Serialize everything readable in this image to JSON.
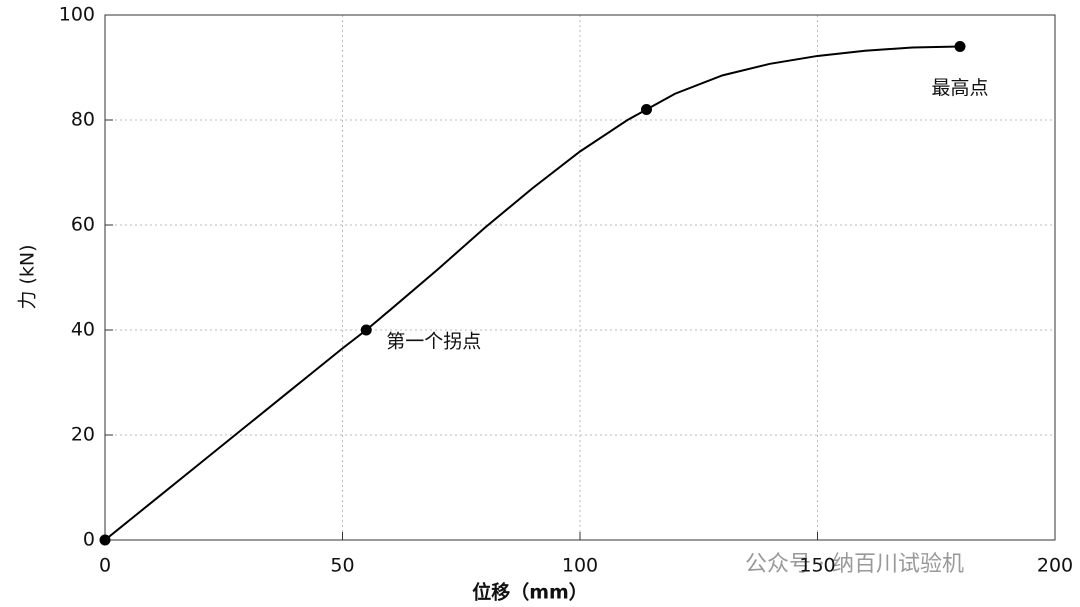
{
  "chart_data": {
    "type": "line",
    "x_label": "位移（mm）",
    "y_label": "力 (kN)",
    "x": [
      0,
      10,
      20,
      30,
      40,
      50,
      55,
      60,
      70,
      80,
      90,
      100,
      110,
      114,
      120,
      130,
      140,
      150,
      160,
      170,
      180
    ],
    "series": [
      {
        "color": "#000000",
        "values": [
          0,
          7.3,
          14.6,
          21.9,
          29.2,
          36.5,
          40,
          43.8,
          51.5,
          59.5,
          67,
          74,
          80,
          82,
          85,
          88.5,
          90.7,
          92.2,
          93.2,
          93.8,
          94
        ]
      }
    ],
    "points": {
      "color": "#000000",
      "x": [
        0,
        55,
        114,
        180
      ],
      "values": [
        0,
        40,
        82,
        94
      ]
    },
    "annotations": [
      "第一个拐点",
      "最高点"
    ],
    "watermark": "公众号 · 纳百川试验机",
    "xlim": [
      0,
      200
    ],
    "xticks": [
      0,
      50,
      100,
      150,
      200
    ],
    "ylim": [
      0,
      100
    ],
    "yticks": [
      0,
      20,
      40,
      60,
      80,
      100
    ],
    "grid": true
  }
}
